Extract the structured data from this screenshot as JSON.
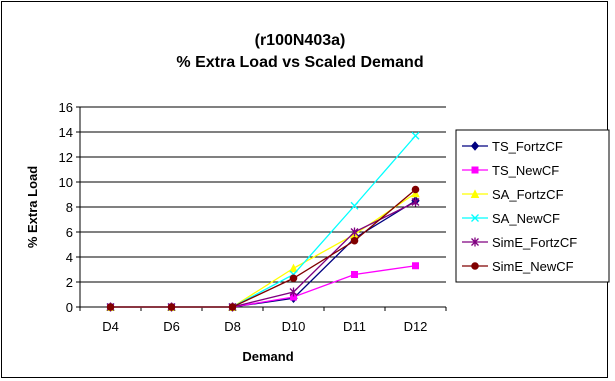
{
  "chart_data": {
    "type": "line",
    "title": "(r100N403a)",
    "subtitle": "% Extra Load vs Scaled Demand",
    "xlabel": "Demand",
    "ylabel": "% Extra Load",
    "categories": [
      "D4",
      "D6",
      "D8",
      "D10",
      "D11",
      "D12"
    ],
    "ylim": [
      0,
      16
    ],
    "yticks": [
      0,
      2,
      4,
      6,
      8,
      10,
      12,
      14,
      16
    ],
    "grid": "horizontal",
    "legend_position": "right",
    "series": [
      {
        "name": "TS_FortzCF",
        "color": "#000080",
        "marker": "diamond",
        "values": [
          0,
          0,
          0,
          0.7,
          5.5,
          8.5
        ]
      },
      {
        "name": "TS_NewCF",
        "color": "#ff00ff",
        "marker": "square",
        "values": [
          0,
          0,
          0,
          0.8,
          2.6,
          3.3
        ]
      },
      {
        "name": "SA_FortzCF",
        "color": "#ffff00",
        "marker": "triangle",
        "values": [
          0,
          0,
          0,
          3.1,
          5.8,
          9.1
        ]
      },
      {
        "name": "SA_NewCF",
        "color": "#00ffff",
        "marker": "x",
        "values": [
          0,
          0,
          0,
          2.6,
          8.1,
          13.7
        ]
      },
      {
        "name": "SimE_FortzCF",
        "color": "#800080",
        "marker": "star",
        "values": [
          0,
          0,
          0,
          1.2,
          6.0,
          8.4
        ]
      },
      {
        "name": "SimE_NewCF",
        "color": "#800000",
        "marker": "circle",
        "values": [
          0,
          0,
          0,
          2.3,
          5.3,
          9.4
        ]
      }
    ]
  }
}
